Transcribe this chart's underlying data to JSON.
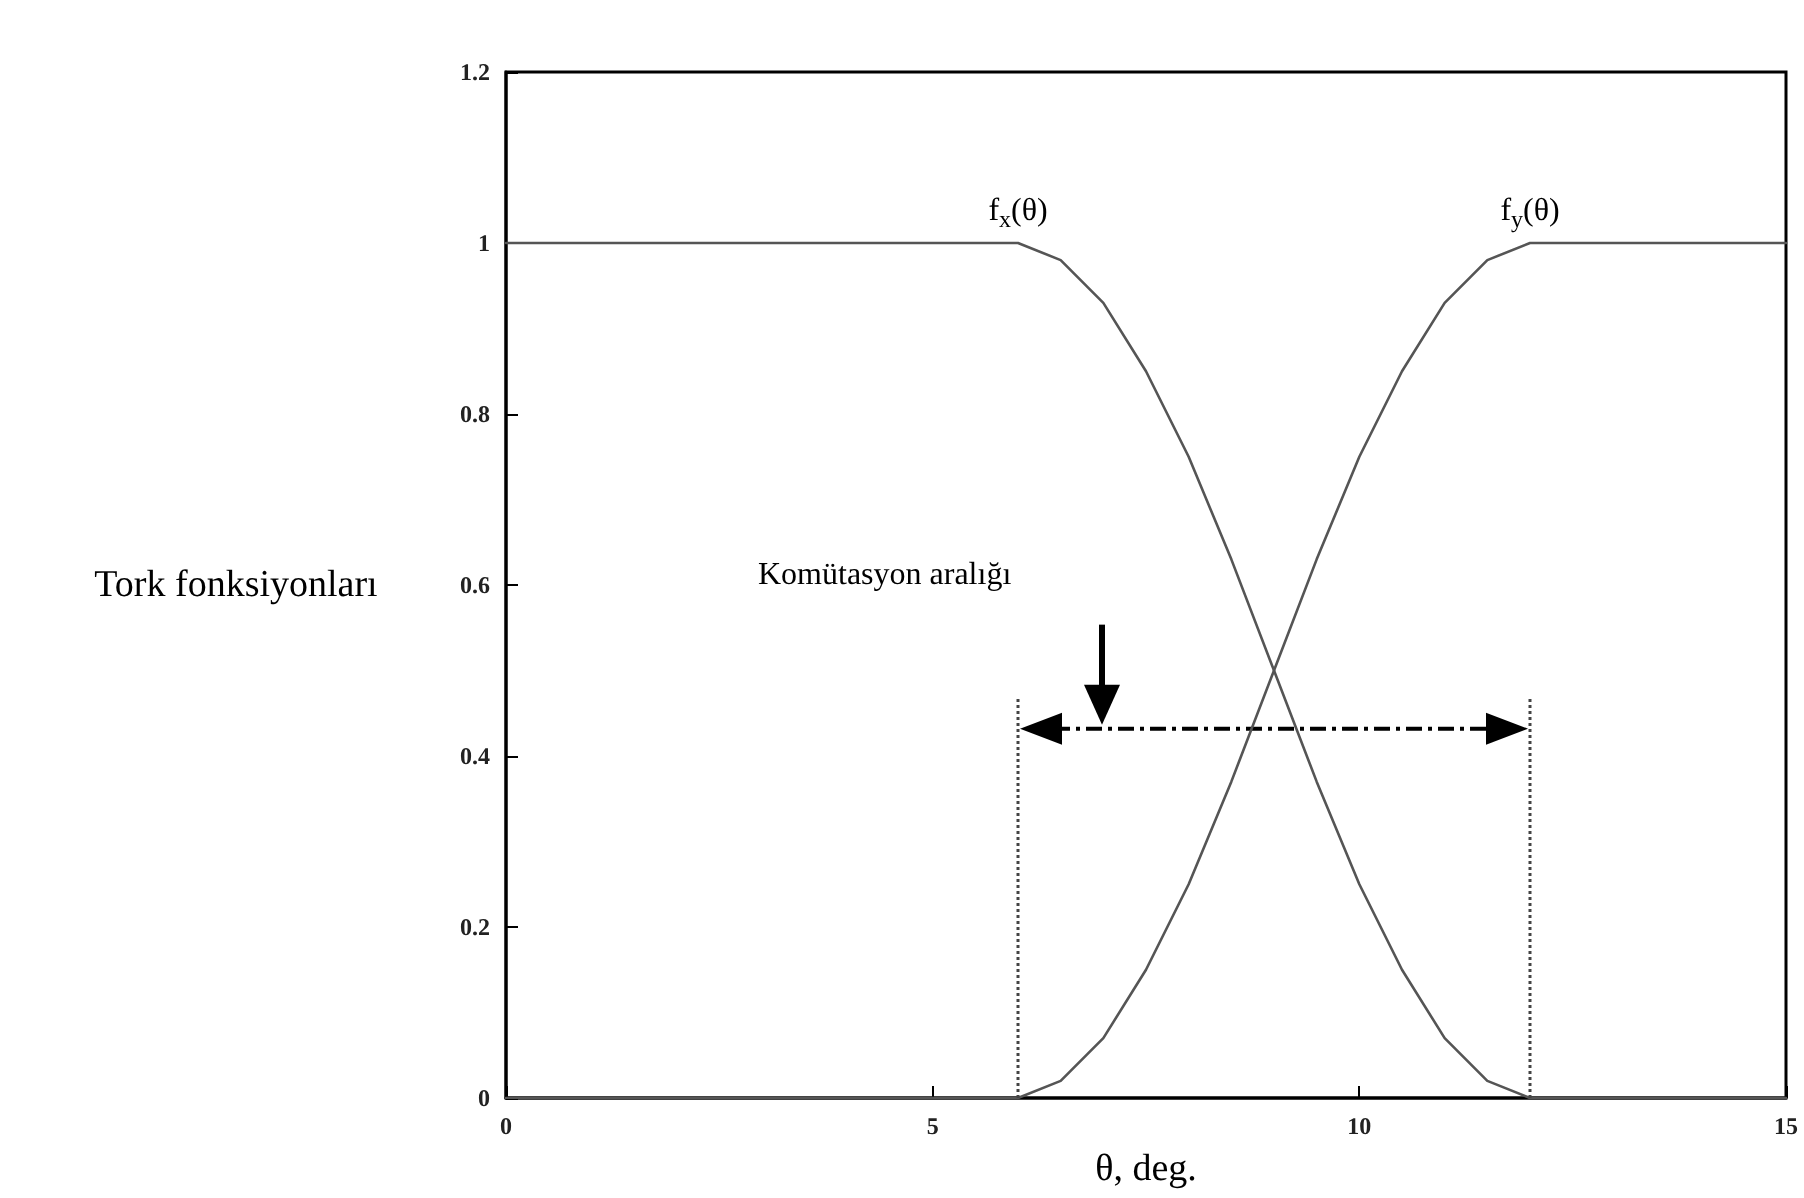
{
  "chart_data": {
    "type": "line",
    "xlabel": "θ, deg.",
    "ylabel": "Tork fonksiyonları",
    "series": [
      {
        "name": "f$_{x}$(θ)",
        "color": "#555555",
        "x": [
          0,
          6,
          6.5,
          7,
          7.5,
          8,
          8.5,
          9,
          9.5,
          10,
          10.5,
          11,
          11.5,
          12,
          15
        ],
        "values": [
          1,
          1,
          0.98,
          0.93,
          0.85,
          0.75,
          0.63,
          0.5,
          0.37,
          0.25,
          0.15,
          0.07,
          0.02,
          0,
          0
        ]
      },
      {
        "name": "f$_{y}$(θ)",
        "color": "#555555",
        "x": [
          0,
          6,
          6.5,
          7,
          7.5,
          8,
          8.5,
          9,
          9.5,
          10,
          10.5,
          11,
          11.5,
          12,
          15
        ],
        "values": [
          0,
          0,
          0.02,
          0.07,
          0.15,
          0.25,
          0.37,
          0.5,
          0.63,
          0.75,
          0.85,
          0.93,
          0.98,
          1,
          1
        ]
      }
    ],
    "xlim": [
      0,
      15
    ],
    "xticks": [
      0,
      5,
      10,
      15
    ],
    "ylim": [
      0,
      1.2
    ],
    "yticks": [
      0,
      0.2,
      0.4,
      0.6,
      0.8,
      1,
      1.2
    ],
    "ref_lines": [
      {
        "axis": "x",
        "value": 6,
        "label": null,
        "line_style": "dotted"
      },
      {
        "axis": "x",
        "value": 12,
        "label": null,
        "line_style": "dotted"
      }
    ],
    "annotations": [
      "Komütasyon aralığı"
    ],
    "grid": false,
    "marker": "none",
    "line_style": "solid"
  }
}
